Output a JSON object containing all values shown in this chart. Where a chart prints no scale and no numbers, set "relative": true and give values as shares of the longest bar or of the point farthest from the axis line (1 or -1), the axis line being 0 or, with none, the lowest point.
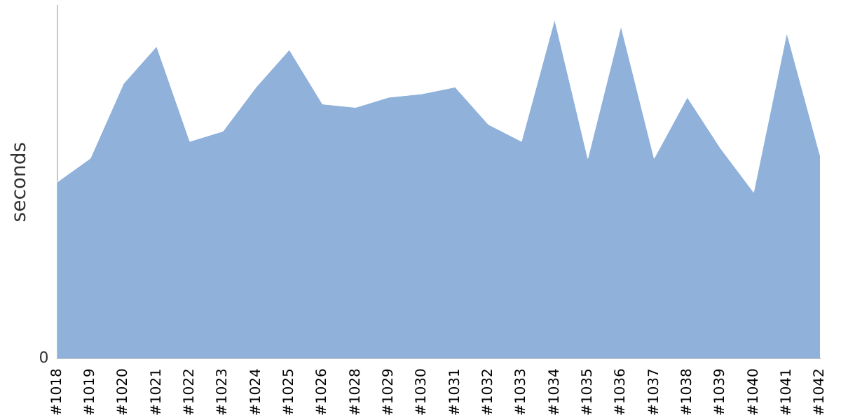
{
  "chart_data": {
    "type": "area",
    "ylabel": "seconds",
    "relative": true,
    "annotations": [
      "0"
    ],
    "grid": false,
    "legend": false,
    "categories": [
      "#1018",
      "#1019",
      "#1020",
      "#1021",
      "#1022",
      "#1023",
      "#1024",
      "#1025",
      "#1026",
      "#1028",
      "#1029",
      "#1030",
      "#1031",
      "#1032",
      "#1033",
      "#1034",
      "#1035",
      "#1036",
      "#1037",
      "#1038",
      "#1039",
      "#1040",
      "#1041",
      "#1042"
    ],
    "series": [
      {
        "color": "#8fb1da",
        "values": [
          0.52,
          0.59,
          0.81,
          0.92,
          0.64,
          0.67,
          0.8,
          0.91,
          0.75,
          0.74,
          0.77,
          0.78,
          0.8,
          0.69,
          0.64,
          1,
          0.59,
          0.98,
          0.59,
          0.77,
          0.62,
          0.49,
          0.96,
          0.6
        ]
      }
    ]
  }
}
